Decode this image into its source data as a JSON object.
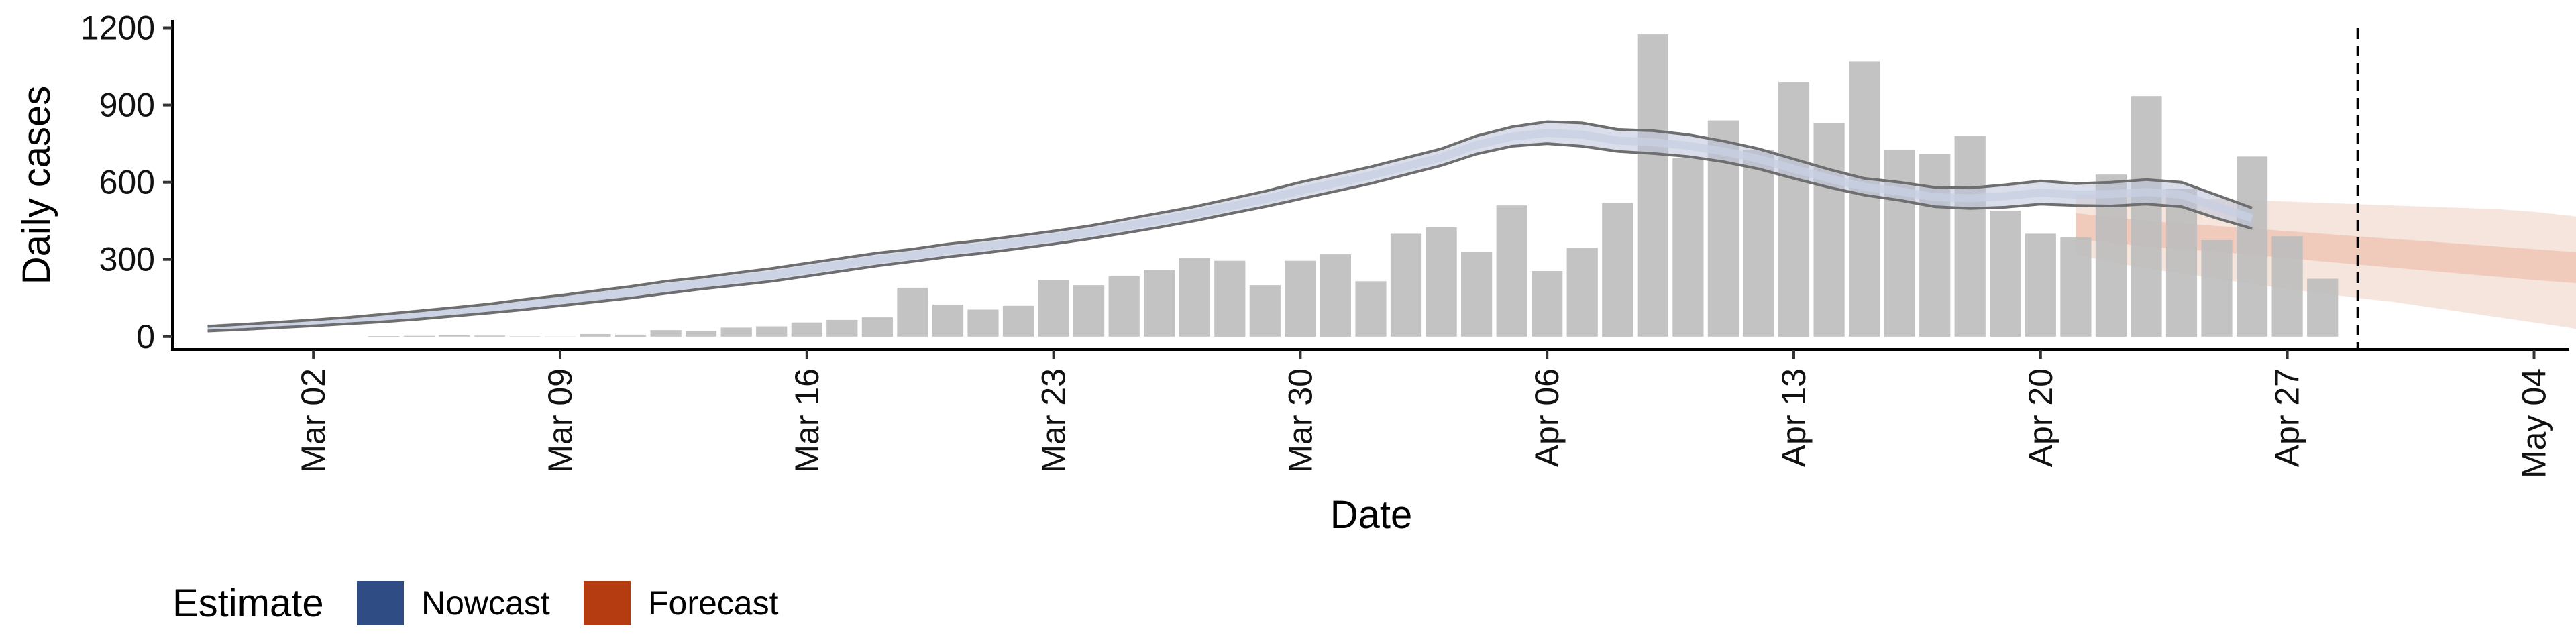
{
  "chart_data": {
    "type": "bar",
    "ylabel": "Daily cases",
    "xlabel": "Date",
    "ylim": [
      -50,
      1230
    ],
    "yticks": [
      0,
      300,
      600,
      900,
      1200
    ],
    "x_start": "2020-02-27",
    "x_end": "2020-05-05",
    "xticks": [
      {
        "date": "2020-03-02",
        "label": "Mar 02"
      },
      {
        "date": "2020-03-09",
        "label": "Mar 09"
      },
      {
        "date": "2020-03-16",
        "label": "Mar 16"
      },
      {
        "date": "2020-03-23",
        "label": "Mar 23"
      },
      {
        "date": "2020-03-30",
        "label": "Mar 30"
      },
      {
        "date": "2020-04-06",
        "label": "Apr 06"
      },
      {
        "date": "2020-04-13",
        "label": "Apr 13"
      },
      {
        "date": "2020-04-20",
        "label": "Apr 20"
      },
      {
        "date": "2020-04-27",
        "label": "Apr 27"
      },
      {
        "date": "2020-05-04",
        "label": "May 04"
      }
    ],
    "reported_cases": {
      "start_date": "2020-03-04",
      "values": [
        2,
        3,
        5,
        4,
        1,
        0,
        10,
        8,
        25,
        22,
        35,
        40,
        55,
        65,
        75,
        190,
        125,
        105,
        120,
        220,
        200,
        235,
        260,
        305,
        295,
        200,
        295,
        320,
        215,
        400,
        425,
        330,
        510,
        255,
        345,
        520,
        1175,
        695,
        840,
        725,
        990,
        830,
        1070,
        725,
        710,
        780,
        490,
        400,
        385,
        630,
        935,
        575,
        375,
        700,
        390,
        225
      ]
    },
    "nowcast": {
      "start_date": "2020-02-28",
      "outer_upper": [
        40,
        48,
        56,
        65,
        75,
        87,
        100,
        113,
        127,
        145,
        160,
        178,
        195,
        215,
        230,
        248,
        265,
        285,
        305,
        325,
        340,
        360,
        375,
        392,
        410,
        430,
        455,
        480,
        505,
        535,
        565,
        600,
        630,
        660,
        695,
        730,
        780,
        815,
        835,
        830,
        805,
        800,
        785,
        760,
        730,
        690,
        650,
        615,
        600,
        580,
        578,
        590,
        605,
        595,
        600,
        610,
        600,
        550,
        500
      ],
      "outer_lower": [
        22,
        28,
        35,
        42,
        50,
        58,
        68,
        80,
        92,
        105,
        120,
        135,
        150,
        168,
        185,
        200,
        215,
        235,
        255,
        275,
        292,
        310,
        325,
        342,
        360,
        380,
        402,
        425,
        450,
        478,
        505,
        535,
        565,
        595,
        630,
        665,
        710,
        740,
        750,
        740,
        720,
        712,
        700,
        680,
        652,
        615,
        580,
        550,
        530,
        505,
        498,
        503,
        515,
        510,
        508,
        515,
        505,
        460,
        420
      ],
      "median": [
        31,
        38,
        45,
        53,
        62,
        72,
        84,
        96,
        110,
        125,
        140,
        156,
        172,
        191,
        207,
        224,
        240,
        260,
        280,
        300,
        316,
        335,
        350,
        367,
        385,
        405,
        428,
        452,
        477,
        506,
        535,
        567,
        597,
        627,
        662,
        697,
        745,
        777,
        792,
        785,
        762,
        756,
        742,
        720,
        691,
        652,
        615,
        582,
        565,
        542,
        538,
        546,
        560,
        552,
        554,
        562,
        552,
        505,
        460
      ]
    },
    "forecast": {
      "start_date": "2020-04-21",
      "outer_upper": [
        555,
        550,
        545,
        540,
        535,
        530,
        525,
        520,
        515,
        510,
        505,
        500,
        495,
        485,
        470,
        455,
        440,
        425,
        410,
        408
      ],
      "inner_upper": [
        480,
        465,
        450,
        440,
        430,
        420,
        410,
        400,
        390,
        380,
        370,
        360,
        350,
        340,
        330,
        320,
        310,
        300,
        290,
        265
      ],
      "inner_lower": [
        380,
        365,
        350,
        340,
        330,
        318,
        305,
        292,
        280,
        268,
        256,
        244,
        232,
        220,
        210,
        198,
        186,
        174,
        150,
        100
      ],
      "outer_lower": [
        320,
        290,
        265,
        245,
        225,
        205,
        185,
        168,
        150,
        135,
        115,
        95,
        75,
        55,
        35,
        5,
        0,
        0,
        0,
        0
      ]
    },
    "vline_date": "2020-04-29",
    "colors": {
      "bar": "#bdbdbd",
      "nowcast_band": "#b9c3d9",
      "nowcast_line": "#6e6e6e",
      "forecast_outer": "#f3dcd2",
      "forecast_inner": "#edc2b0",
      "vline": "#000000"
    },
    "legend": {
      "title": "Estimate",
      "position": "bottom-left",
      "items": [
        {
          "label": "Nowcast",
          "color": "#2f4c84"
        },
        {
          "label": "Forecast",
          "color": "#b43c10"
        }
      ]
    }
  }
}
